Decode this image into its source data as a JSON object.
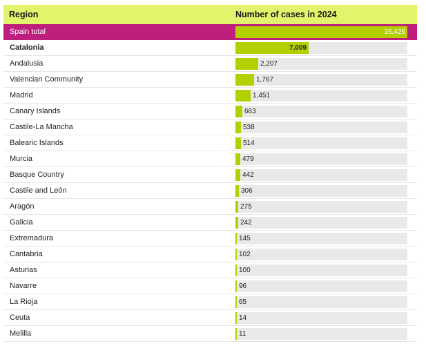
{
  "colors": {
    "header_bg": "#e3f36b",
    "bar": "#b2cf00",
    "track": "#e9e9e9",
    "total_bg": "#be1f7d"
  },
  "chart_data": {
    "type": "bar",
    "orientation": "horizontal",
    "headers": {
      "category": "Region",
      "value": "Number of cases in 2024"
    },
    "xlim": [
      0,
      16426
    ],
    "rows": [
      {
        "region": "Spain total",
        "value": 16426,
        "label": "16,426",
        "style": "total"
      },
      {
        "region": "Catalonia",
        "value": 7009,
        "label": "7,009",
        "style": "bold"
      },
      {
        "region": "Andalusia",
        "value": 2207,
        "label": "2,207",
        "style": "normal"
      },
      {
        "region": "Valencian Community",
        "value": 1767,
        "label": "1,767",
        "style": "normal"
      },
      {
        "region": "Madrid",
        "value": 1451,
        "label": "1,451",
        "style": "normal"
      },
      {
        "region": "Canary Islands",
        "value": 663,
        "label": "663",
        "style": "normal"
      },
      {
        "region": "Castile-La Mancha",
        "value": 538,
        "label": "538",
        "style": "normal"
      },
      {
        "region": "Balearic Islands",
        "value": 514,
        "label": "514",
        "style": "normal"
      },
      {
        "region": "Murcia",
        "value": 479,
        "label": "479",
        "style": "normal"
      },
      {
        "region": "Basque Country",
        "value": 442,
        "label": "442",
        "style": "normal"
      },
      {
        "region": "Castile and León",
        "value": 306,
        "label": "306",
        "style": "normal"
      },
      {
        "region": "Aragón",
        "value": 275,
        "label": "275",
        "style": "normal"
      },
      {
        "region": "Galicia",
        "value": 242,
        "label": "242",
        "style": "normal"
      },
      {
        "region": "Extremadura",
        "value": 145,
        "label": "145",
        "style": "normal"
      },
      {
        "region": "Cantabria",
        "value": 102,
        "label": "102",
        "style": "normal"
      },
      {
        "region": "Asturias",
        "value": 100,
        "label": "100",
        "style": "normal"
      },
      {
        "region": "Navarre",
        "value": 96,
        "label": "96",
        "style": "normal"
      },
      {
        "region": "La Rioja",
        "value": 65,
        "label": "65",
        "style": "normal"
      },
      {
        "region": "Ceuta",
        "value": 14,
        "label": "14",
        "style": "normal"
      },
      {
        "region": "Melilla",
        "value": 11,
        "label": "11",
        "style": "normal"
      }
    ]
  }
}
